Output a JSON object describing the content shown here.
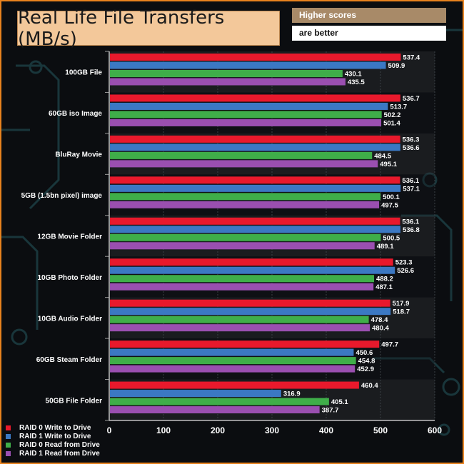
{
  "chart_data": {
    "type": "bar",
    "orientation": "horizontal",
    "title": "Real Life File Transfers (MB/s)",
    "note": [
      "Higher scores",
      "are better"
    ],
    "categories": [
      "100GB File",
      "60GB iso Image",
      "BluRay Movie",
      "5GB (1.5bn pixel) image",
      "12GB Movie Folder",
      "10GB Photo Folder",
      "10GB Audio Folder",
      "60GB Steam Folder",
      "50GB File Folder"
    ],
    "series": [
      {
        "name": "RAID 0 Write to Drive",
        "color": "#e8192c",
        "values": [
          537.4,
          536.7,
          536.3,
          536.1,
          536.1,
          523.3,
          517.9,
          497.7,
          460.4
        ]
      },
      {
        "name": "RAID 1 Write to Drive",
        "color": "#3b78c3",
        "values": [
          509.9,
          513.7,
          536.6,
          537.1,
          536.8,
          526.6,
          518.7,
          450.6,
          316.9
        ]
      },
      {
        "name": "RAID 0 Read from Drive",
        "color": "#3fae49",
        "values": [
          430.1,
          502.2,
          484.5,
          500.1,
          500.5,
          488.2,
          478.4,
          454.8,
          405.1
        ]
      },
      {
        "name": "RAID 1 Read from Drive",
        "color": "#9a4fb0",
        "values": [
          435.5,
          501.4,
          495.1,
          497.5,
          489.1,
          487.1,
          480.4,
          452.9,
          387.7
        ]
      }
    ],
    "xlim": [
      0,
      600
    ],
    "xticks": [
      "0",
      "100",
      "200",
      "300",
      "400",
      "500",
      "600"
    ],
    "grid": true,
    "legend_position": "bottom-left",
    "value_labels": true
  }
}
